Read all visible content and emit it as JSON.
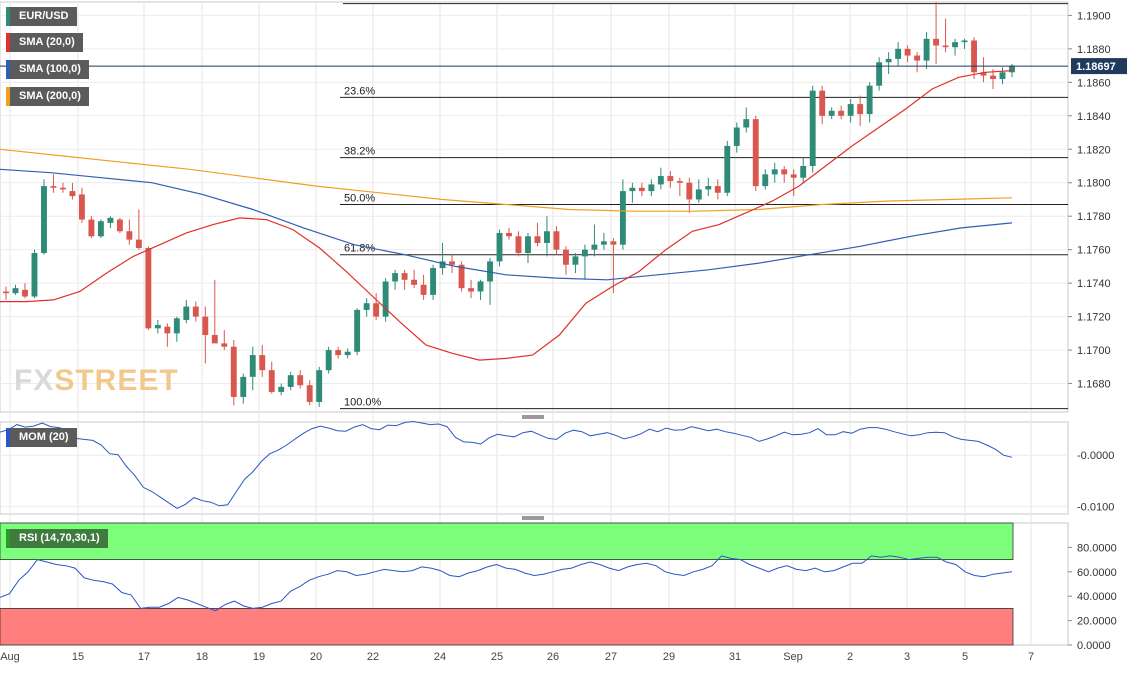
{
  "legend": {
    "pair": "EUR/USD",
    "sma20": "SMA (20,0)",
    "sma100": "SMA (100,0)",
    "sma200": "SMA (200,0)",
    "mom": "MOM (20)",
    "rsi": "RSI (14,70,30,1)"
  },
  "colors": {
    "up": "#2f8a78",
    "down": "#d9574e",
    "sma20": "#e0302a",
    "sma100": "#2f5fb0",
    "sma200": "#f0a020",
    "mom_line": "#2a56c6",
    "rsi_line": "#2a56c6",
    "rsi_over": "#7dff7d",
    "rsi_under": "#ff7f7f",
    "price_tag": "#1f3a5c"
  },
  "watermark": {
    "part1": "FX",
    "part2": "STREET"
  },
  "current_price": "1.18697",
  "chart_data": [
    {
      "type": "candlestick",
      "title": "EUR/USD",
      "ylim": [
        1.1663,
        1.1908
      ],
      "price_ticks": [
        "1.1900",
        "1.1880",
        "1.1860",
        "1.1840",
        "1.1820",
        "1.1800",
        "1.1780",
        "1.1760",
        "1.1740",
        "1.1720",
        "1.1700",
        "1.1680"
      ],
      "x_ticks": [
        "Aug",
        "15",
        "17",
        "18",
        "19",
        "20",
        "22",
        "24",
        "25",
        "26",
        "27",
        "29",
        "31",
        "Sep",
        "2",
        "3",
        "5",
        "7"
      ],
      "fibonacci": [
        {
          "label": "23.6%",
          "price": 1.1851
        },
        {
          "label": "38.2%",
          "price": 1.1815
        },
        {
          "label": "50.0%",
          "price": 1.1787
        },
        {
          "label": "61.8%",
          "price": 1.1757
        },
        {
          "label": "100.0%",
          "price": 1.1665
        }
      ],
      "top_line": 1.1907,
      "candles": [
        [
          1.1735,
          1.1738,
          1.173,
          1.1734
        ],
        [
          1.1734,
          1.1739,
          1.1733,
          1.1737
        ],
        [
          1.1736,
          1.174,
          1.1731,
          1.1732
        ],
        [
          1.1732,
          1.176,
          1.1731,
          1.1758
        ],
        [
          1.1758,
          1.1802,
          1.1757,
          1.1798
        ],
        [
          1.1798,
          1.1805,
          1.1794,
          1.1797
        ],
        [
          1.1797,
          1.18,
          1.1794,
          1.1796
        ],
        [
          1.1795,
          1.18,
          1.179,
          1.1792
        ],
        [
          1.1793,
          1.1797,
          1.1776,
          1.1778
        ],
        [
          1.1778,
          1.178,
          1.1767,
          1.1768
        ],
        [
          1.1768,
          1.1778,
          1.1767,
          1.1777
        ],
        [
          1.1776,
          1.178,
          1.1773,
          1.1779
        ],
        [
          1.1778,
          1.1779,
          1.177,
          1.1771
        ],
        [
          1.1771,
          1.1778,
          1.1763,
          1.1766
        ],
        [
          1.1766,
          1.1784,
          1.176,
          1.1761
        ],
        [
          1.1761,
          1.1762,
          1.1712,
          1.1713
        ],
        [
          1.1713,
          1.1718,
          1.171,
          1.1715
        ],
        [
          1.1714,
          1.1716,
          1.1702,
          1.171
        ],
        [
          1.171,
          1.172,
          1.1705,
          1.1719
        ],
        [
          1.1718,
          1.173,
          1.1716,
          1.1726
        ],
        [
          1.1726,
          1.1729,
          1.1717,
          1.172
        ],
        [
          1.172,
          1.1726,
          1.1692,
          1.1709
        ],
        [
          1.1709,
          1.1742,
          1.1705,
          1.1704
        ],
        [
          1.1704,
          1.1712,
          1.17,
          1.1702
        ],
        [
          1.1702,
          1.1706,
          1.1667,
          1.1672
        ],
        [
          1.1672,
          1.1686,
          1.1668,
          1.1684
        ],
        [
          1.1684,
          1.1702,
          1.1676,
          1.1697
        ],
        [
          1.1697,
          1.1703,
          1.1684,
          1.1688
        ],
        [
          1.1688,
          1.1693,
          1.1674,
          1.1675
        ],
        [
          1.1675,
          1.168,
          1.1673,
          1.1678
        ],
        [
          1.1678,
          1.1687,
          1.1676,
          1.1685
        ],
        [
          1.1685,
          1.1688,
          1.1677,
          1.1679
        ],
        [
          1.1679,
          1.1682,
          1.1667,
          1.1669
        ],
        [
          1.1669,
          1.169,
          1.1666,
          1.1688
        ],
        [
          1.1688,
          1.1702,
          1.1686,
          1.17
        ],
        [
          1.17,
          1.1702,
          1.1695,
          1.1697
        ],
        [
          1.1697,
          1.1701,
          1.1695,
          1.1699
        ],
        [
          1.1699,
          1.1725,
          1.1697,
          1.1724
        ],
        [
          1.1724,
          1.1731,
          1.172,
          1.1728
        ],
        [
          1.1728,
          1.1734,
          1.1718,
          1.172
        ],
        [
          1.172,
          1.1743,
          1.1717,
          1.1741
        ],
        [
          1.1741,
          1.1748,
          1.1736,
          1.1746
        ],
        [
          1.1746,
          1.1748,
          1.1736,
          1.1742
        ],
        [
          1.1742,
          1.1748,
          1.1737,
          1.1739
        ],
        [
          1.1739,
          1.1745,
          1.173,
          1.1733
        ],
        [
          1.1733,
          1.1751,
          1.173,
          1.1749
        ],
        [
          1.1749,
          1.1764,
          1.1745,
          1.1753
        ],
        [
          1.1753,
          1.1757,
          1.1746,
          1.1751
        ],
        [
          1.1751,
          1.1753,
          1.1735,
          1.1737
        ],
        [
          1.1737,
          1.1742,
          1.1731,
          1.1735
        ],
        [
          1.1735,
          1.1742,
          1.173,
          1.1741
        ],
        [
          1.1741,
          1.1755,
          1.1727,
          1.1753
        ],
        [
          1.1753,
          1.1772,
          1.175,
          1.177
        ],
        [
          1.177,
          1.1773,
          1.1766,
          1.1768
        ],
        [
          1.1768,
          1.1771,
          1.1756,
          1.1758
        ],
        [
          1.1758,
          1.177,
          1.1752,
          1.1768
        ],
        [
          1.1768,
          1.1776,
          1.1762,
          1.1764
        ],
        [
          1.1764,
          1.178,
          1.1756,
          1.1771
        ],
        [
          1.1771,
          1.1774,
          1.1757,
          1.176
        ],
        [
          1.176,
          1.1762,
          1.1745,
          1.1751
        ],
        [
          1.1751,
          1.1758,
          1.1746,
          1.1756
        ],
        [
          1.1756,
          1.1763,
          1.1742,
          1.176
        ],
        [
          1.176,
          1.1775,
          1.1756,
          1.1763
        ],
        [
          1.1763,
          1.177,
          1.176,
          1.1765
        ],
        [
          1.1765,
          1.1767,
          1.1734,
          1.1763
        ],
        [
          1.1763,
          1.1802,
          1.176,
          1.1795
        ],
        [
          1.1795,
          1.18,
          1.1788,
          1.1797
        ],
        [
          1.1797,
          1.18,
          1.1792,
          1.1795
        ],
        [
          1.1795,
          1.1802,
          1.1792,
          1.1799
        ],
        [
          1.1799,
          1.1809,
          1.1796,
          1.1804
        ],
        [
          1.1804,
          1.1807,
          1.1797,
          1.1801
        ],
        [
          1.1801,
          1.1803,
          1.1792,
          1.18
        ],
        [
          1.18,
          1.1803,
          1.1782,
          1.179
        ],
        [
          1.179,
          1.1802,
          1.1788,
          1.1796
        ],
        [
          1.1796,
          1.1803,
          1.1792,
          1.1798
        ],
        [
          1.1798,
          1.1802,
          1.179,
          1.1794
        ],
        [
          1.1794,
          1.1825,
          1.1792,
          1.1822
        ],
        [
          1.1822,
          1.1836,
          1.1818,
          1.1833
        ],
        [
          1.1833,
          1.1845,
          1.183,
          1.1838
        ],
        [
          1.1838,
          1.184,
          1.1795,
          1.1798
        ],
        [
          1.1798,
          1.1808,
          1.1796,
          1.1805
        ],
        [
          1.1805,
          1.1812,
          1.18,
          1.1808
        ],
        [
          1.1808,
          1.181,
          1.18,
          1.1805
        ],
        [
          1.1805,
          1.1808,
          1.1792,
          1.1803
        ],
        [
          1.1803,
          1.1815,
          1.18,
          1.181
        ],
        [
          1.181,
          1.1858,
          1.1806,
          1.1855
        ],
        [
          1.1855,
          1.1858,
          1.1835,
          1.184
        ],
        [
          1.184,
          1.1845,
          1.1838,
          1.1843
        ],
        [
          1.1843,
          1.1846,
          1.1838,
          1.184
        ],
        [
          1.184,
          1.185,
          1.1836,
          1.1847
        ],
        [
          1.1847,
          1.1852,
          1.1834,
          1.1841
        ],
        [
          1.1841,
          1.186,
          1.1836,
          1.1858
        ],
        [
          1.1858,
          1.1875,
          1.1855,
          1.1872
        ],
        [
          1.1872,
          1.1878,
          1.1865,
          1.1874
        ],
        [
          1.1874,
          1.1884,
          1.187,
          1.188
        ],
        [
          1.188,
          1.1882,
          1.1872,
          1.1876
        ],
        [
          1.1876,
          1.1878,
          1.1866,
          1.1873
        ],
        [
          1.1873,
          1.189,
          1.1868,
          1.1886
        ],
        [
          1.1886,
          1.1908,
          1.1871,
          1.1882
        ],
        [
          1.1882,
          1.1898,
          1.1878,
          1.1881
        ],
        [
          1.1881,
          1.1886,
          1.1876,
          1.1884
        ],
        [
          1.1884,
          1.1886,
          1.188,
          1.1885
        ],
        [
          1.1885,
          1.1887,
          1.1862,
          1.1866
        ],
        [
          1.1866,
          1.1875,
          1.186,
          1.1864
        ],
        [
          1.1864,
          1.1868,
          1.1856,
          1.1862
        ],
        [
          1.1862,
          1.1869,
          1.1859,
          1.1866
        ],
        [
          1.1866,
          1.1871,
          1.1863,
          1.187
        ]
      ],
      "sma20": [
        1.1729,
        1.1729,
        1.173,
        1.1735,
        1.1746,
        1.1756,
        1.1763,
        1.177,
        1.1775,
        1.1779,
        1.1778,
        1.1772,
        1.1761,
        1.1747,
        1.1732,
        1.1717,
        1.1703,
        1.1698,
        1.1694,
        1.1695,
        1.1697,
        1.1709,
        1.1728,
        1.1738,
        1.1747,
        1.176,
        1.1771,
        1.1775,
        1.1782,
        1.1789,
        1.1798,
        1.181,
        1.1822,
        1.1833,
        1.1844,
        1.1856,
        1.1863,
        1.1866,
        1.1867
      ],
      "sma100": [
        1.1808,
        1.1806,
        1.1803,
        1.18,
        1.1793,
        1.1784,
        1.1773,
        1.1763,
        1.1757,
        1.175,
        1.1745,
        1.1743,
        1.1742,
        1.1745,
        1.1748,
        1.1752,
        1.1757,
        1.1762,
        1.1768,
        1.1773,
        1.1776
      ],
      "sma200": [
        1.182,
        1.1816,
        1.1812,
        1.1808,
        1.1803,
        1.1798,
        1.1794,
        1.179,
        1.1787,
        1.1784,
        1.1783,
        1.1783,
        1.1784,
        1.1787,
        1.1789,
        1.179,
        1.1791
      ]
    },
    {
      "type": "line",
      "title": "MOM (20)",
      "ylim": [
        -0.0115,
        0.0065
      ],
      "y_ticks": [
        "-0.0000",
        "-0.0100"
      ],
      "values": [
        0.0045,
        0.005,
        0.006,
        0.0055,
        0.0057,
        0.0063,
        0.0056,
        0.0054,
        0.0049,
        0.0033,
        0.0031,
        0.0029,
        0.002,
        0.0003,
        0.0001,
        -0.0022,
        -0.004,
        -0.0063,
        -0.0071,
        -0.0082,
        -0.0093,
        -0.0104,
        -0.0096,
        -0.0083,
        -0.0089,
        -0.0092,
        -0.0099,
        -0.0097,
        -0.0072,
        -0.0047,
        -0.0032,
        -0.0012,
        0.0003,
        0.001,
        0.002,
        0.0032,
        0.0043,
        0.0052,
        0.0057,
        0.0053,
        0.0048,
        0.0047,
        0.0055,
        0.006,
        0.0052,
        0.005,
        0.0059,
        0.0058,
        0.0064,
        0.0066,
        0.0063,
        0.006,
        0.0061,
        0.0056,
        0.0035,
        0.0026,
        0.0025,
        0.0022,
        0.0034,
        0.0041,
        0.0038,
        0.0036,
        0.0044,
        0.0047,
        0.004,
        0.0033,
        0.0031,
        0.0043,
        0.0049,
        0.0046,
        0.0038,
        0.0041,
        0.0044,
        0.0039,
        0.0032,
        0.0036,
        0.0042,
        0.0051,
        0.0046,
        0.0053,
        0.0049,
        0.005,
        0.0056,
        0.0052,
        0.0048,
        0.0051,
        0.0046,
        0.0043,
        0.0039,
        0.0035,
        0.0027,
        0.0032,
        0.0038,
        0.0045,
        0.004,
        0.0041,
        0.0044,
        0.0052,
        0.004,
        0.004,
        0.0046,
        0.0043,
        0.0051,
        0.0054,
        0.0054,
        0.0051,
        0.0046,
        0.0042,
        0.0038,
        0.004,
        0.0044,
        0.0045,
        0.0044,
        0.0036,
        0.0031,
        0.0029,
        0.0027,
        0.002,
        0.0012,
        0.0,
        -0.0004
      ]
    },
    {
      "type": "line",
      "title": "RSI (14,70,30,1)",
      "ylim": [
        0,
        100
      ],
      "overbought": 70,
      "oversold": 30,
      "y_ticks": [
        "80.0000",
        "60.0000",
        "40.0000",
        "20.0000",
        "0.0000"
      ],
      "values": [
        39,
        42,
        53,
        60,
        70,
        68,
        66,
        65,
        63,
        55,
        53,
        52,
        50,
        43,
        41,
        30,
        31,
        31,
        34,
        39,
        37,
        34,
        31,
        28,
        33,
        36,
        32,
        30,
        31,
        34,
        36,
        44,
        48,
        53,
        56,
        58,
        61,
        60,
        57,
        58,
        60,
        62,
        61,
        60,
        61,
        64,
        63,
        61,
        57,
        56,
        59,
        61,
        64,
        66,
        63,
        62,
        59,
        57,
        58,
        60,
        62,
        63,
        66,
        68,
        66,
        63,
        61,
        64,
        66,
        67,
        65,
        60,
        58,
        57,
        60,
        62,
        65,
        73,
        71,
        70,
        66,
        63,
        60,
        63,
        65,
        62,
        61,
        63,
        60,
        61,
        64,
        67,
        67,
        73,
        72,
        73,
        72,
        70,
        71,
        72,
        72,
        68,
        66,
        60,
        57,
        56,
        58,
        59,
        60
      ]
    }
  ]
}
